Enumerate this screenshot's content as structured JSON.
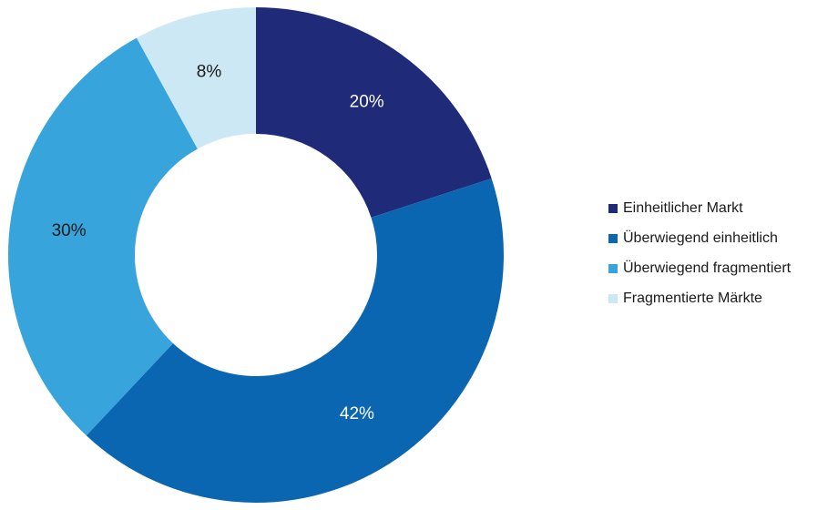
{
  "chart_data": {
    "type": "pie",
    "subtype": "donut",
    "title": "",
    "categories": [
      "Einheitlicher Markt",
      "Überwiegend einheitlich",
      "Überwiegend fragmentiert",
      "Fragmentierte Märkte"
    ],
    "values": [
      20,
      42,
      30,
      8
    ],
    "labels": [
      "20%",
      "42%",
      "30%",
      "8%"
    ],
    "colors": [
      "#1f2a78",
      "#0b66b2",
      "#38a4dc",
      "#cde8f5"
    ],
    "label_colors": [
      "#ffffff",
      "#ffffff",
      "#1a1a1a",
      "#1a1a1a"
    ],
    "start": "12 o'clock, clockwise",
    "legend_position": "right"
  }
}
